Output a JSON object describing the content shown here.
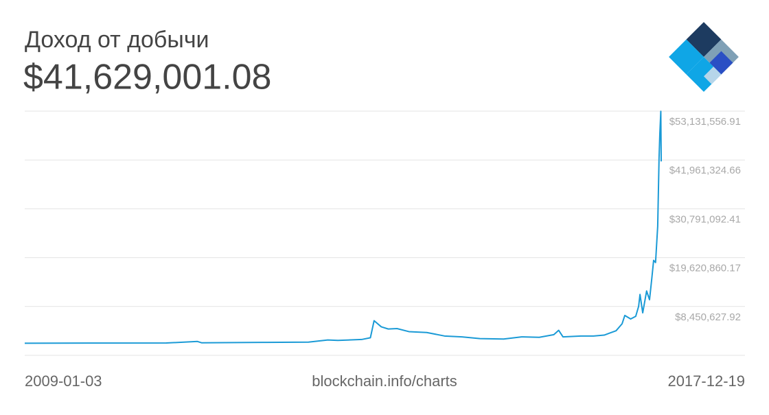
{
  "chart_data": {
    "type": "line",
    "title": "Доход от добычи",
    "subtitle": "$41,629,001.08",
    "source": "blockchain.info/charts",
    "xlim": [
      "2009-01-03",
      "2017-12-19"
    ],
    "ylim": [
      -2719604.33,
      53131556.91
    ],
    "yticks": [
      {
        "value": 8450627.92,
        "label": "$8,450,627.92"
      },
      {
        "value": 19620860.17,
        "label": "$19,620,860.17"
      },
      {
        "value": 30791092.41,
        "label": "$30,791,092.41"
      },
      {
        "value": 41961324.66,
        "label": "$41,961,324.66"
      },
      {
        "value": 53131556.91,
        "label": "$53,131,556.91"
      }
    ],
    "grid": true,
    "series": [
      {
        "name": "Доход от добычи",
        "color": "#1a9ad6",
        "x": [
          "2009-01-03",
          "2010-01-01",
          "2011-01-01",
          "2011-06-10",
          "2011-07-01",
          "2012-01-01",
          "2012-06-01",
          "2013-01-01",
          "2013-04-10",
          "2013-06-01",
          "2013-10-01",
          "2013-11-15",
          "2013-12-04",
          "2014-01-10",
          "2014-02-15",
          "2014-04-01",
          "2014-06-01",
          "2014-09-01",
          "2014-12-01",
          "2015-03-01",
          "2015-06-01",
          "2015-10-01",
          "2016-01-01",
          "2016-04-01",
          "2016-06-15",
          "2016-07-10",
          "2016-08-01",
          "2016-11-01",
          "2017-01-05",
          "2017-03-01",
          "2017-05-01",
          "2017-06-01",
          "2017-06-15",
          "2017-07-15",
          "2017-08-10",
          "2017-08-25",
          "2017-09-01",
          "2017-09-15",
          "2017-10-05",
          "2017-10-20",
          "2017-11-01",
          "2017-11-10",
          "2017-11-20",
          "2017-12-01",
          "2017-12-08",
          "2017-12-12",
          "2017-12-17",
          "2017-12-19"
        ],
        "values": [
          50000,
          80000,
          100000,
          450000,
          150000,
          200000,
          250000,
          300000,
          800000,
          700000,
          900000,
          1300000,
          5200000,
          3800000,
          3300000,
          3400000,
          2700000,
          2500000,
          1700000,
          1500000,
          1100000,
          1000000,
          1500000,
          1400000,
          2000000,
          3000000,
          1500000,
          1700000,
          1700000,
          1900000,
          2900000,
          4500000,
          6400000,
          5600000,
          6200000,
          8500000,
          11200000,
          7000000,
          12000000,
          10000000,
          15000000,
          19000000,
          18500000,
          26800000,
          42400000,
          48000000,
          53100000,
          41629001.08
        ]
      }
    ]
  }
}
